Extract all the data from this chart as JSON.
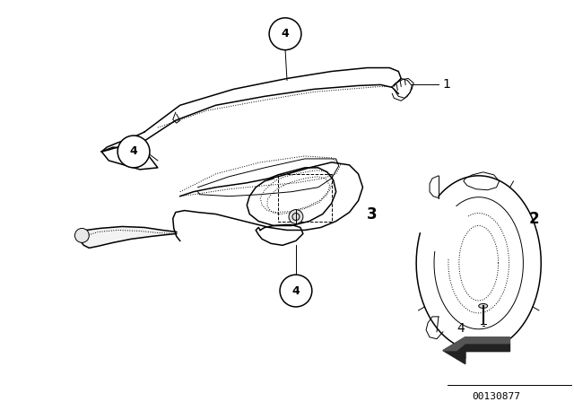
{
  "background_color": "#ffffff",
  "fig_width": 6.4,
  "fig_height": 4.48,
  "dpi": 100,
  "watermark": "00130877",
  "line_color": "#000000",
  "text_color": "#000000"
}
